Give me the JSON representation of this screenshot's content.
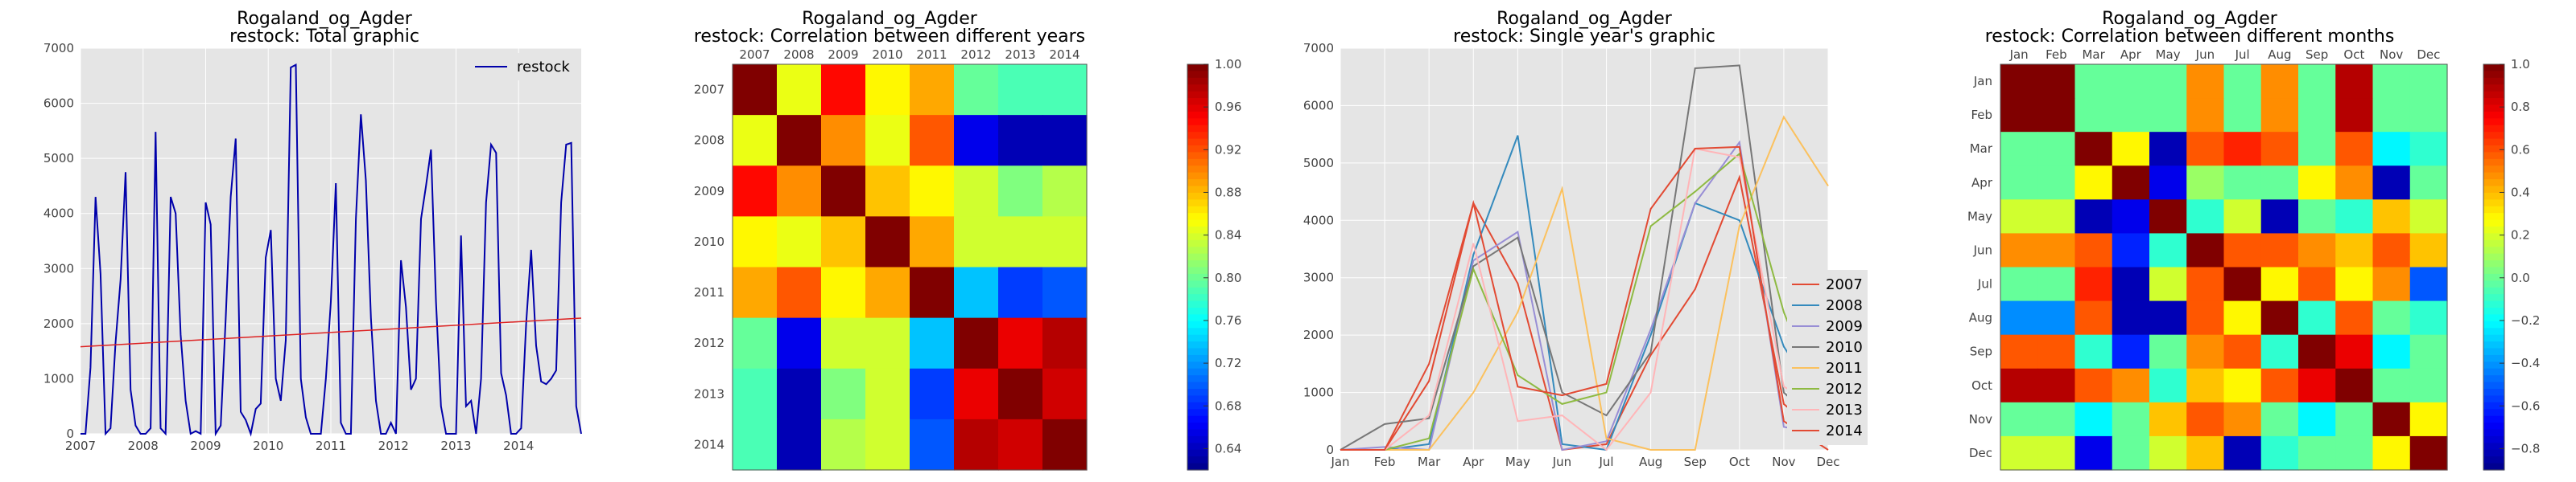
{
  "chart_data": [
    {
      "type": "line",
      "title": "Rogaland_og_Agder",
      "subtitle": "restock: Total graphic",
      "x_ticks": [
        "2007",
        "2008",
        "2009",
        "2010",
        "2011",
        "2012",
        "2013",
        "2014"
      ],
      "y_ticks": [
        "0",
        "1000",
        "2000",
        "3000",
        "4000",
        "5000",
        "6000",
        "7000"
      ],
      "ylim": [
        0,
        7000
      ],
      "xlim": [
        2007,
        2015
      ],
      "grid": true,
      "legend": {
        "entries": [
          "restock"
        ],
        "placement": "top-right"
      },
      "series": [
        {
          "name": "restock",
          "color": "#0000aa",
          "values": [
            0,
            0,
            1200,
            4300,
            2900,
            0,
            100,
            1650,
            2800,
            4750,
            800,
            150,
            0,
            0,
            100,
            5480,
            100,
            0,
            4300,
            4000,
            1800,
            600,
            0,
            50,
            0,
            4200,
            3800,
            0,
            150,
            2100,
            4300,
            5360,
            400,
            250,
            0,
            450,
            550,
            3200,
            3700,
            1000,
            600,
            1700,
            6650,
            6700,
            1000,
            300,
            0,
            0,
            0,
            1000,
            2400,
            4550,
            200,
            0,
            0,
            3900,
            5800,
            4600,
            2100,
            600,
            0,
            0,
            200,
            0,
            3150,
            2300,
            800,
            1000,
            3900,
            4500,
            5160,
            2400,
            500,
            0,
            0,
            0,
            3600,
            500,
            600,
            0,
            1000,
            4200,
            5250,
            5100,
            1100,
            700,
            0,
            0,
            100,
            2000,
            3340,
            1600,
            950,
            900,
            1000,
            1150,
            4200,
            5250,
            5280,
            500,
            0
          ]
        }
      ],
      "trend": {
        "color": "#dd2222",
        "start": 1580,
        "end": 2100
      }
    },
    {
      "type": "heatmap",
      "title": "Rogaland_og_Agder",
      "subtitle": "restock: Correlation between different years",
      "labels": [
        "2007",
        "2008",
        "2009",
        "2010",
        "2011",
        "2012",
        "2013",
        "2014"
      ],
      "colorbar_ticks": [
        "1.00",
        "0.96",
        "0.92",
        "0.88",
        "0.84",
        "0.80",
        "0.76",
        "0.72",
        "0.68",
        "0.64"
      ],
      "vmin": 0.62,
      "vmax": 1.0,
      "matrix": [
        [
          1.0,
          0.85,
          0.95,
          0.86,
          0.89,
          0.8,
          0.79,
          0.79
        ],
        [
          0.85,
          1.0,
          0.9,
          0.85,
          0.92,
          0.66,
          0.64,
          0.64
        ],
        [
          0.95,
          0.9,
          1.0,
          0.88,
          0.86,
          0.84,
          0.81,
          0.83
        ],
        [
          0.86,
          0.85,
          0.88,
          1.0,
          0.89,
          0.84,
          0.84,
          0.84
        ],
        [
          0.89,
          0.92,
          0.86,
          0.89,
          1.0,
          0.74,
          0.69,
          0.7
        ],
        [
          0.8,
          0.66,
          0.84,
          0.84,
          0.74,
          1.0,
          0.96,
          0.98
        ],
        [
          0.79,
          0.64,
          0.81,
          0.84,
          0.69,
          0.96,
          1.0,
          0.97
        ],
        [
          0.79,
          0.64,
          0.83,
          0.84,
          0.7,
          0.98,
          0.97,
          1.0
        ]
      ]
    },
    {
      "type": "line",
      "title": "Rogaland_og_Agder",
      "subtitle": "restock: Single year's graphic",
      "categories": [
        "Jan",
        "Feb",
        "Mar",
        "Apr",
        "May",
        "Jun",
        "Jul",
        "Aug",
        "Sep",
        "Oct",
        "Nov",
        "Dec"
      ],
      "y_ticks": [
        "0",
        "1000",
        "2000",
        "3000",
        "4000",
        "5000",
        "6000",
        "7000"
      ],
      "ylim": [
        0,
        7000
      ],
      "grid": true,
      "legend": {
        "placement": "lower-right"
      },
      "series": [
        {
          "name": "2007",
          "color": "#e24a33",
          "values": [
            0,
            0,
            1200,
            4300,
            2900,
            0,
            100,
            1650,
            2800,
            4750,
            800,
            150
          ]
        },
        {
          "name": "2008",
          "color": "#348abd",
          "values": [
            0,
            0,
            100,
            3400,
            5480,
            100,
            0,
            2000,
            4300,
            4000,
            1800,
            600
          ]
        },
        {
          "name": "2009",
          "color": "#988ed5",
          "values": [
            0,
            50,
            0,
            3300,
            3800,
            0,
            150,
            2100,
            4300,
            5360,
            400,
            250
          ]
        },
        {
          "name": "2010",
          "color": "#777777",
          "values": [
            0,
            450,
            550,
            3200,
            3700,
            1000,
            600,
            1700,
            6650,
            6700,
            1000,
            300
          ]
        },
        {
          "name": "2011",
          "color": "#fbc15e",
          "values": [
            0,
            0,
            0,
            1000,
            2400,
            4550,
            200,
            0,
            0,
            3900,
            5800,
            4600
          ]
        },
        {
          "name": "2012",
          "color": "#8eba42",
          "values": [
            0,
            0,
            200,
            3150,
            1300,
            800,
            1000,
            3900,
            4500,
            5160,
            2400,
            500
          ]
        },
        {
          "name": "2013",
          "color": "#ffb5b8",
          "values": [
            0,
            0,
            600,
            3600,
            500,
            600,
            0,
            1000,
            5250,
            5100,
            1100,
            700
          ]
        },
        {
          "name": "2014",
          "color": "#e24a33",
          "values": [
            0,
            0,
            1500,
            4300,
            1100,
            950,
            1150,
            4200,
            5250,
            5280,
            500,
            0
          ]
        }
      ]
    },
    {
      "type": "heatmap",
      "title": "Rogaland_og_Agder",
      "subtitle": "restock: Correlation between different months",
      "labels": [
        "Jan",
        "Feb",
        "Mar",
        "Apr",
        "May",
        "Jun",
        "Jul",
        "Aug",
        "Sep",
        "Oct",
        "Nov",
        "Dec"
      ],
      "colorbar_ticks": [
        "1.0",
        "0.8",
        "0.6",
        "0.4",
        "0.2",
        "0.0",
        "−0.2",
        "−0.4",
        "−0.6",
        "−0.8"
      ],
      "vmin": -0.9,
      "vmax": 1.0,
      "matrix": [
        [
          1.0,
          1.0,
          0.0,
          0.0,
          0.0,
          0.5,
          0.0,
          0.5,
          0.0,
          0.9,
          0.0,
          0.0
        ],
        [
          1.0,
          1.0,
          0.0,
          0.0,
          0.0,
          0.5,
          0.0,
          0.5,
          0.0,
          0.9,
          0.0,
          0.0
        ],
        [
          0.0,
          0.0,
          1.0,
          0.3,
          -0.8,
          0.6,
          0.7,
          0.6,
          0.0,
          0.6,
          -0.2,
          -0.1
        ],
        [
          0.0,
          0.0,
          0.3,
          1.0,
          -0.7,
          0.1,
          0.0,
          0.0,
          0.3,
          0.5,
          -0.8,
          0.0
        ],
        [
          0.2,
          0.2,
          -0.8,
          -0.7,
          1.0,
          -0.1,
          0.2,
          -0.8,
          0.0,
          -0.1,
          0.4,
          0.2
        ],
        [
          0.5,
          0.5,
          0.6,
          -0.6,
          -0.1,
          1.0,
          0.6,
          0.6,
          0.5,
          0.4,
          0.6,
          0.4
        ],
        [
          0.0,
          0.0,
          0.7,
          -0.8,
          0.2,
          0.6,
          1.0,
          0.3,
          0.6,
          0.3,
          0.5,
          -0.5
        ],
        [
          -0.4,
          -0.4,
          0.6,
          -0.8,
          -0.8,
          0.6,
          0.3,
          1.0,
          -0.1,
          0.6,
          0.0,
          -0.1
        ],
        [
          0.6,
          0.6,
          -0.1,
          -0.6,
          0.0,
          0.5,
          0.6,
          -0.1,
          1.0,
          0.8,
          -0.2,
          0.0
        ],
        [
          0.9,
          0.9,
          0.6,
          0.5,
          -0.1,
          0.4,
          0.3,
          0.6,
          0.8,
          1.0,
          0.0,
          0.0
        ],
        [
          0.0,
          0.0,
          -0.2,
          0.0,
          0.4,
          0.6,
          0.5,
          0.0,
          -0.2,
          0.0,
          1.0,
          0.3
        ],
        [
          0.2,
          0.2,
          -0.7,
          0.0,
          0.2,
          0.4,
          -0.8,
          -0.1,
          0.0,
          0.0,
          0.3,
          1.0
        ]
      ]
    }
  ]
}
